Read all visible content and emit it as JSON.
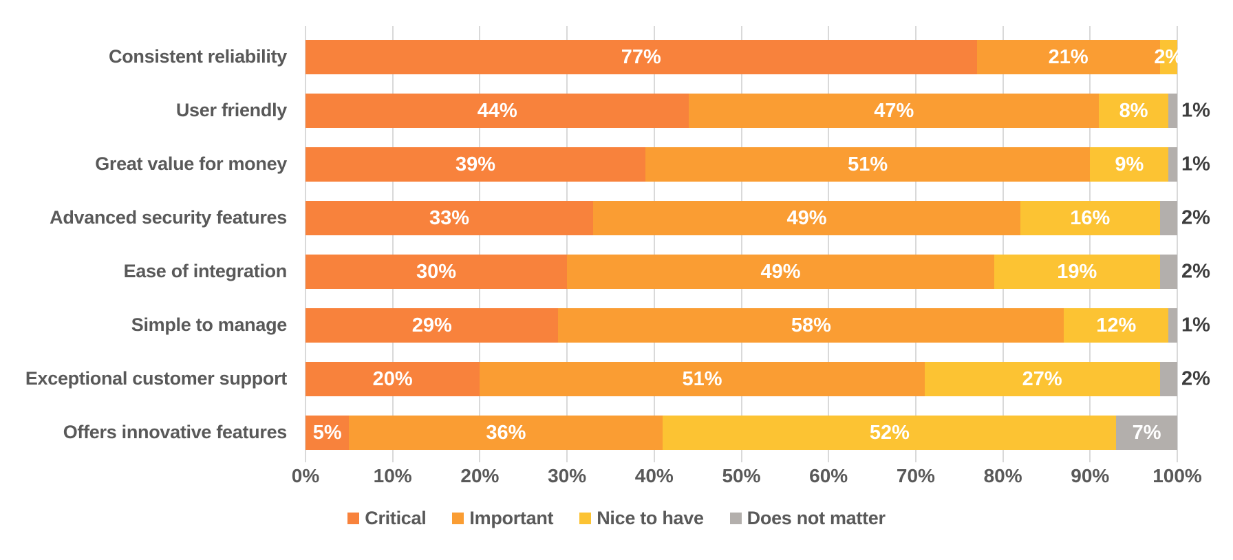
{
  "chart_data": {
    "type": "bar",
    "orientation": "horizontal",
    "stacked": true,
    "title": "",
    "xlabel": "",
    "ylabel": "",
    "unit": "percent",
    "xlim": [
      0,
      100
    ],
    "grid": true,
    "legend_position": "bottom",
    "label_format": "{value}%",
    "categories": [
      "Consistent reliability",
      "User friendly",
      "Great value for money",
      "Advanced security features",
      "Ease of integration",
      "Simple to manage",
      "Exceptional customer support",
      "Offers innovative features"
    ],
    "series": [
      {
        "name": "Critical",
        "color": "#F8823C",
        "values": [
          77,
          44,
          39,
          33,
          30,
          29,
          20,
          5
        ]
      },
      {
        "name": "Important",
        "color": "#FA9D33",
        "values": [
          21,
          47,
          51,
          49,
          49,
          58,
          51,
          36
        ]
      },
      {
        "name": "Nice to have",
        "color": "#FCC333",
        "values": [
          2,
          8,
          9,
          16,
          19,
          12,
          27,
          52
        ]
      },
      {
        "name": "Does not matter",
        "color": "#B3AFAC",
        "values": [
          0,
          1,
          1,
          2,
          2,
          1,
          2,
          7
        ]
      }
    ],
    "label_placement": [
      [
        "inside",
        "inside",
        "inside",
        "none"
      ],
      [
        "inside",
        "inside",
        "inside",
        "outside"
      ],
      [
        "inside",
        "inside",
        "inside",
        "outside"
      ],
      [
        "inside",
        "inside",
        "inside",
        "outside"
      ],
      [
        "inside",
        "inside",
        "inside",
        "outside"
      ],
      [
        "inside",
        "inside",
        "inside",
        "outside"
      ],
      [
        "inside",
        "inside",
        "inside",
        "outside"
      ],
      [
        "inside",
        "inside",
        "inside",
        "inside"
      ]
    ],
    "x_ticks": [
      "0%",
      "10%",
      "20%",
      "30%",
      "40%",
      "50%",
      "60%",
      "70%",
      "80%",
      "90%",
      "100%"
    ]
  },
  "style": {
    "background": "#FFFFFF",
    "grid_color": "#D9D9D9",
    "category_label_color": "#595959",
    "axis_tick_color": "#595959",
    "legend_text_color": "#595959",
    "value_label_inside_color": "#FFFFFF",
    "value_label_outside_color": "#3D3D3D"
  }
}
